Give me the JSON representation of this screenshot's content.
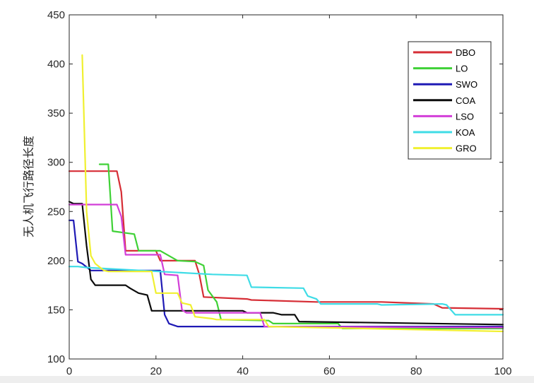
{
  "chart_data": {
    "type": "line",
    "title": "",
    "xlabel": "",
    "ylabel": "无人机飞行路径长度",
    "xlim": [
      0,
      100
    ],
    "ylim": [
      100,
      450
    ],
    "xticks": [
      0,
      20,
      40,
      60,
      80,
      100
    ],
    "yticks": [
      100,
      150,
      200,
      250,
      300,
      350,
      400,
      450
    ],
    "xtick_labels": [
      "0",
      "20",
      "40",
      "60",
      "80",
      "100"
    ],
    "ytick_labels": [
      "100",
      "150",
      "200",
      "250",
      "300",
      "350",
      "400",
      "450"
    ],
    "grid": false,
    "legend_position": "top-right",
    "series": [
      {
        "name": "DBO",
        "color": "#d62d35",
        "points": [
          [
            0,
            291
          ],
          [
            11,
            291
          ],
          [
            12,
            270
          ],
          [
            13,
            210
          ],
          [
            20,
            210
          ],
          [
            21,
            200
          ],
          [
            29,
            200
          ],
          [
            30,
            186
          ],
          [
            31,
            163
          ],
          [
            41,
            161
          ],
          [
            42,
            160
          ],
          [
            57,
            158
          ],
          [
            72,
            158
          ],
          [
            84,
            156
          ],
          [
            86,
            152
          ],
          [
            100,
            151
          ]
        ]
      },
      {
        "name": "LO",
        "color": "#3fd136",
        "points": [
          [
            7,
            298
          ],
          [
            9,
            298
          ],
          [
            10,
            230
          ],
          [
            15,
            227
          ],
          [
            16,
            210
          ],
          [
            21,
            210
          ],
          [
            25,
            200
          ],
          [
            29,
            199
          ],
          [
            31,
            195
          ],
          [
            32,
            170
          ],
          [
            34,
            158
          ],
          [
            35,
            140
          ],
          [
            46,
            139
          ],
          [
            47,
            136
          ],
          [
            62,
            136
          ],
          [
            63,
            131
          ],
          [
            100,
            131
          ]
        ]
      },
      {
        "name": "SWO",
        "color": "#1f1ab5",
        "points": [
          [
            0,
            241
          ],
          [
            1,
            241
          ],
          [
            2,
            199
          ],
          [
            3,
            197
          ],
          [
            5,
            190
          ],
          [
            21,
            190
          ],
          [
            22,
            145
          ],
          [
            23,
            136
          ],
          [
            25,
            133
          ],
          [
            100,
            133
          ]
        ]
      },
      {
        "name": "COA",
        "color": "#0b0b0b",
        "points": [
          [
            0,
            260
          ],
          [
            1,
            258
          ],
          [
            3,
            258
          ],
          [
            4,
            215
          ],
          [
            5,
            181
          ],
          [
            6,
            175
          ],
          [
            13,
            175
          ],
          [
            14,
            172
          ],
          [
            16,
            167
          ],
          [
            18,
            165
          ],
          [
            19,
            149
          ],
          [
            40,
            149
          ],
          [
            41,
            147
          ],
          [
            47,
            147
          ],
          [
            49,
            145
          ],
          [
            52,
            145
          ],
          [
            53,
            138
          ],
          [
            100,
            135
          ]
        ]
      },
      {
        "name": "LSO",
        "color": "#d23ed8",
        "points": [
          [
            0,
            257
          ],
          [
            1,
            257
          ],
          [
            11,
            257
          ],
          [
            12,
            245
          ],
          [
            13,
            206
          ],
          [
            21,
            206
          ],
          [
            22,
            186
          ],
          [
            25,
            185
          ],
          [
            26,
            150
          ],
          [
            27,
            147
          ],
          [
            44,
            147
          ],
          [
            45,
            133
          ],
          [
            100,
            132
          ]
        ]
      },
      {
        "name": "KOA",
        "color": "#3fdce6",
        "points": [
          [
            0,
            194
          ],
          [
            2,
            194
          ],
          [
            4,
            193
          ],
          [
            33,
            186
          ],
          [
            41,
            185
          ],
          [
            42,
            173
          ],
          [
            54,
            172
          ],
          [
            55,
            164
          ],
          [
            57,
            161
          ],
          [
            58,
            156
          ],
          [
            71,
            156
          ],
          [
            72,
            155
          ],
          [
            86,
            156
          ],
          [
            87,
            155
          ],
          [
            89,
            145
          ],
          [
            100,
            145
          ]
        ]
      },
      {
        "name": "GRO",
        "color": "#f0f030",
        "points": [
          [
            3,
            409
          ],
          [
            4,
            250
          ],
          [
            5,
            205
          ],
          [
            6,
            197
          ],
          [
            8,
            190
          ],
          [
            9,
            189
          ],
          [
            19,
            189
          ],
          [
            20,
            167
          ],
          [
            25,
            167
          ],
          [
            26,
            157
          ],
          [
            28,
            155
          ],
          [
            29,
            143
          ],
          [
            33,
            141
          ],
          [
            34,
            140
          ],
          [
            45,
            140
          ],
          [
            46,
            133
          ],
          [
            100,
            128
          ]
        ]
      }
    ]
  }
}
